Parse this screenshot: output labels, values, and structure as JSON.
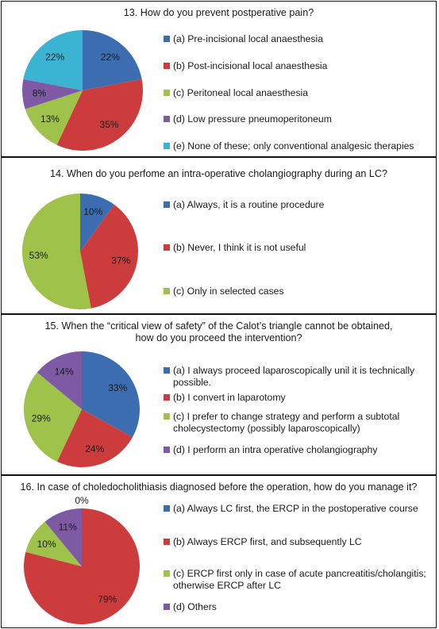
{
  "colors": {
    "blue": "#3c6db0",
    "red": "#cc3c3c",
    "green": "#9ec24a",
    "purple": "#7e5aa4",
    "cyan": "#3ab4d2"
  },
  "chart_data": [
    {
      "type": "pie",
      "title": "13. How do you prevent postperative pain?",
      "slices": [
        {
          "label": "(a) Pre-incisional local anaesthesia",
          "value": 22,
          "text": "22%",
          "color": "blue"
        },
        {
          "label": "(b) Post-incisional local anaesthesia",
          "value": 35,
          "text": "35%",
          "color": "red"
        },
        {
          "label": "(c) Peritoneal local anaesthesia",
          "value": 13,
          "text": "13%",
          "color": "green"
        },
        {
          "label": "(d) Low pressure pneumoperitoneum",
          "value": 8,
          "text": "8%",
          "color": "purple"
        },
        {
          "label": "(e) None of these; only conventional analgesic therapies",
          "value": 22,
          "text": "22%",
          "color": "cyan"
        }
      ],
      "legend": "right"
    },
    {
      "type": "pie",
      "title": "14. When do you perfome an intra-operative cholangiography during an LC?",
      "slices": [
        {
          "label": "(a) Always, it is a routine procedure",
          "value": 10,
          "text": "10%",
          "color": "blue"
        },
        {
          "label": "(b) Never, I think it is not useful",
          "value": 37,
          "text": "37%",
          "color": "red"
        },
        {
          "label": "(c) Only in selected cases",
          "value": 53,
          "text": "53%",
          "color": "green"
        }
      ],
      "legend": "right"
    },
    {
      "type": "pie",
      "title": "15. When the “critical view of safety” of the Calot’s triangle cannot be obtained,\nhow do you proceed the intervention?",
      "slices": [
        {
          "label": "(a) I always proceed laparoscopically unil it is technically\npossible.",
          "value": 33,
          "text": "33%",
          "color": "blue"
        },
        {
          "label": "(b) I convert in laparotomy",
          "value": 24,
          "text": "24%",
          "color": "red"
        },
        {
          "label": "(c) I prefer to change strategy and perform a subtotal\ncholecystectomy (possibly laparoscopically)",
          "value": 29,
          "text": "29%",
          "color": "green"
        },
        {
          "label": "(d) I perform an intra operative cholangiography",
          "value": 14,
          "text": "14%",
          "color": "purple"
        }
      ],
      "legend": "right"
    },
    {
      "type": "pie",
      "title": "16. In case of choledocholithiasis diagnosed before the operation, how do you manage it?",
      "slices": [
        {
          "label": "(a) Always LC first, the ERCP in the postoperative course",
          "value": 0,
          "text": "0%",
          "color": "blue"
        },
        {
          "label": "(b) Always ERCP first, and subsequently LC",
          "value": 79,
          "text": "79%",
          "color": "red"
        },
        {
          "label": "(c) ERCP first only in case of acute pancreatitis/cholangitis;\notherwise ERCP after LC",
          "value": 10,
          "text": "10%",
          "color": "green"
        },
        {
          "label": "(d) Others",
          "value": 11,
          "text": "11%",
          "color": "purple"
        }
      ],
      "legend": "right"
    }
  ]
}
